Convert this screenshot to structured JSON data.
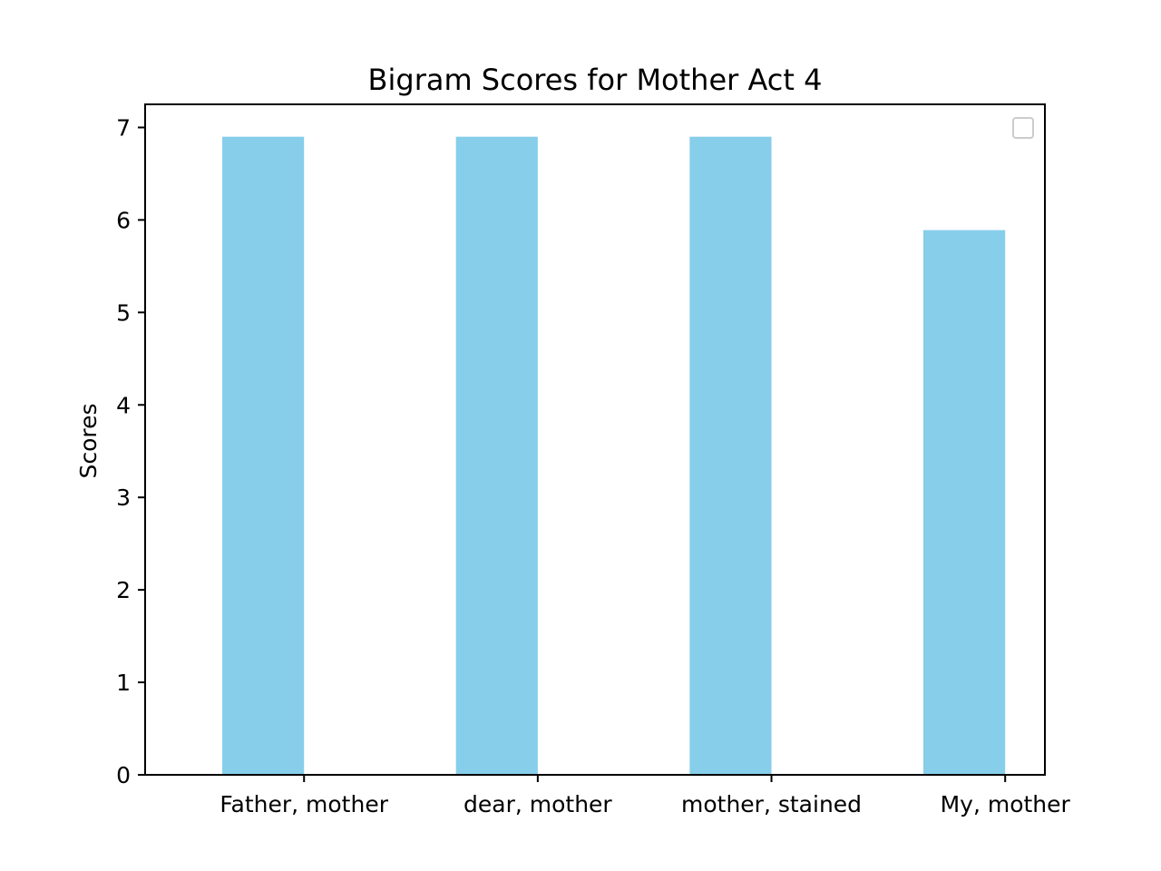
{
  "chart_data": {
    "type": "bar",
    "title": "Bigram Scores for Mother Act 4",
    "xlabel": "",
    "ylabel": "Scores",
    "categories": [
      "Father, mother",
      "dear, mother",
      "mother, stained",
      "My, mother"
    ],
    "values": [
      6.9,
      6.9,
      6.9,
      5.89
    ],
    "ylim": [
      0,
      7.25
    ],
    "yticks": [
      0,
      1,
      2,
      3,
      4,
      5,
      6,
      7
    ],
    "grid": false,
    "legend": {
      "placement": "top-right",
      "entries": []
    },
    "colors": {
      "bar": "#87CEEB",
      "axis": "#000000",
      "legend_border": "#cccccc"
    }
  }
}
